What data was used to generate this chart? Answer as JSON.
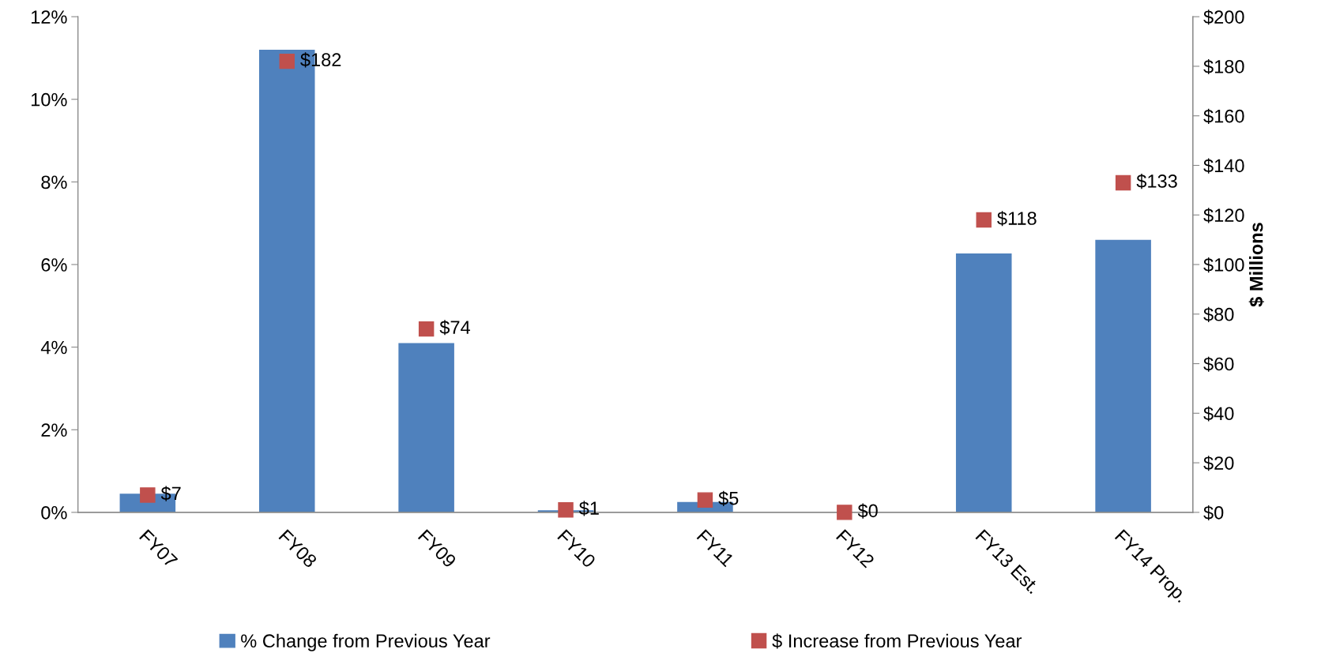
{
  "chart_data": {
    "type": "bar",
    "y2label": "$ Millions",
    "categories": [
      "FY07",
      "FY08",
      "FY09",
      "FY10",
      "FY11",
      "FY12",
      "FY13 Est.",
      "FY14 Prop."
    ],
    "series": [
      {
        "name": "% Change from Previous Year",
        "color": "#4f81bd",
        "values": [
          0.45,
          11.2,
          4.1,
          0.05,
          0.25,
          0,
          6.27,
          6.6
        ]
      },
      {
        "name": "$ Increase from Previous Year",
        "type": "scatter",
        "axis": "y2",
        "marker": "square",
        "color": "#c0504d",
        "values": [
          7,
          182,
          74,
          1,
          5,
          0,
          118,
          133
        ],
        "value_labels": [
          "$7",
          "$182",
          "$74",
          "$1",
          "$5",
          "$0",
          "$118",
          "$133"
        ]
      }
    ],
    "ylim": [
      0,
      12
    ],
    "yticks": [
      {
        "value": 0,
        "label": "0%"
      },
      {
        "value": 2,
        "label": "2%"
      },
      {
        "value": 4,
        "label": "4%"
      },
      {
        "value": 6,
        "label": "6%"
      },
      {
        "value": 8,
        "label": "8%"
      },
      {
        "value": 10,
        "label": "10%"
      },
      {
        "value": 12,
        "label": "12%"
      }
    ],
    "y2lim": [
      0,
      200
    ],
    "y2ticks": [
      {
        "value": 0,
        "label": "$0"
      },
      {
        "value": 20,
        "label": "$20"
      },
      {
        "value": 40,
        "label": "$40"
      },
      {
        "value": 60,
        "label": "$60"
      },
      {
        "value": 80,
        "label": "$80"
      },
      {
        "value": 100,
        "label": "$100"
      },
      {
        "value": 120,
        "label": "$120"
      },
      {
        "value": 140,
        "label": "$140"
      },
      {
        "value": 160,
        "label": "$160"
      },
      {
        "value": 180,
        "label": "$180"
      },
      {
        "value": 200,
        "label": "$200"
      }
    ],
    "grid": false,
    "legend": "bottom"
  }
}
